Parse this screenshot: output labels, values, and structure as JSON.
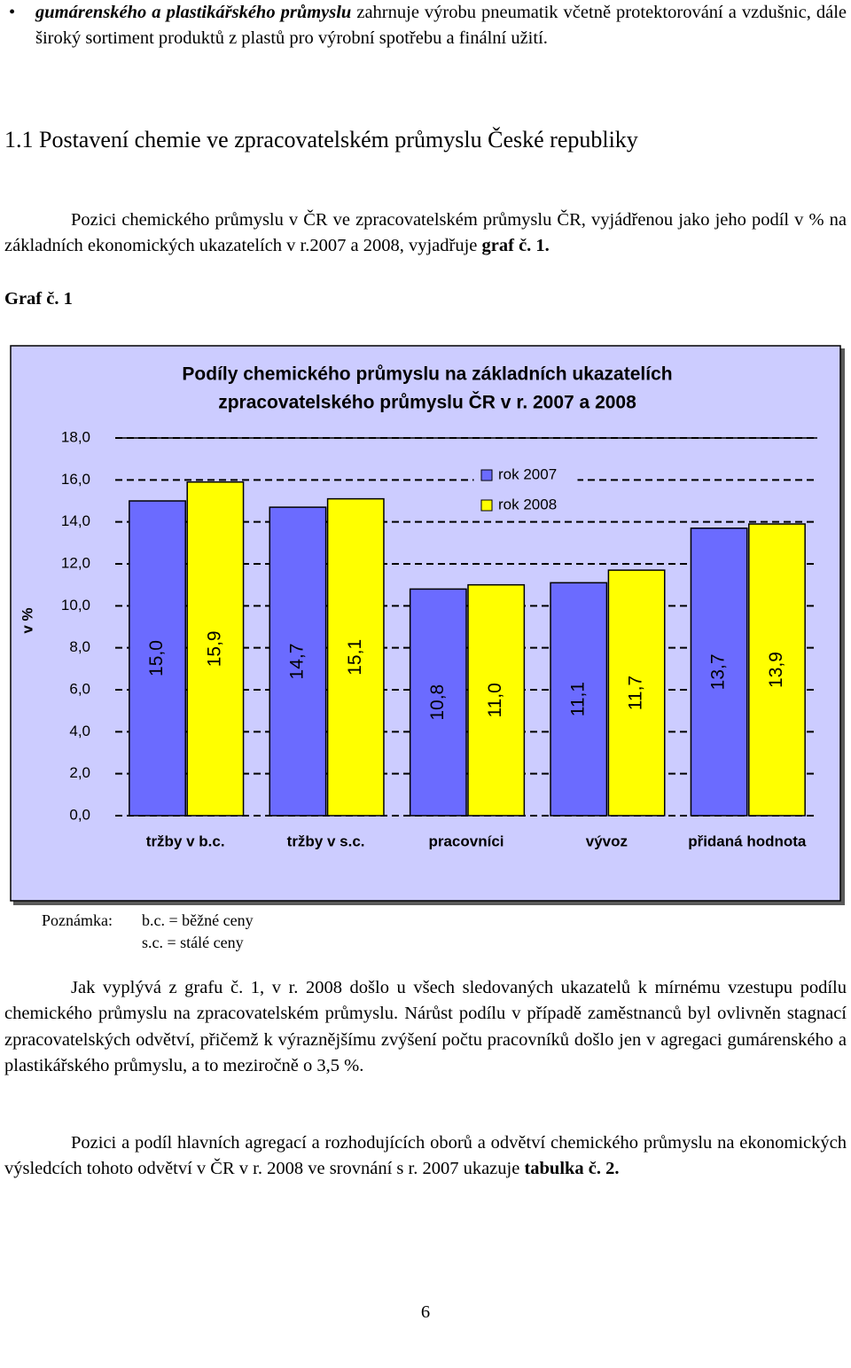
{
  "bullet": {
    "emphasis": "gumárenského a plastikářského průmyslu",
    "text": "zahrnuje výrobu pneumatik včetně protektorování a vzdušnic, dále široký sortiment produktů z plastů pro výrobní spotřebu a finální užití."
  },
  "heading": "1.1 Postavení chemie ve zpracovatelském průmyslu České republiky",
  "paragraph1": {
    "text": "Pozici chemického průmyslu v ČR ve zpracovatelském průmyslu ČR, vyjádřenou jako jeho podíl v % na základních ekonomických ukazatelích v r.2007 a 2008, vyjadřuje",
    "emphasis": "graf č. 1."
  },
  "figure_label": "Graf č. 1",
  "chart_data": {
    "type": "bar",
    "title": [
      "Podíly chemického průmyslu na základních ukazatelích",
      "zpracovatelského průmyslu ČR v r. 2007 a 2008"
    ],
    "y_label": "v %",
    "categories": [
      "tržby v b.c.",
      "tržby v s.c.",
      "pracovníci",
      "vývoz",
      "přidaná hodnota"
    ],
    "series": [
      {
        "name": "rok 2007",
        "color": "#6b6bff",
        "values": [
          15.0,
          14.7,
          10.8,
          11.1,
          13.7
        ],
        "value_labels": [
          "15,0",
          "14,7",
          "10,8",
          "11,1",
          "13,7"
        ]
      },
      {
        "name": "rok 2008",
        "color": "#ffff00",
        "values": [
          15.9,
          15.1,
          11.0,
          11.7,
          13.9
        ],
        "value_labels": [
          "15,9",
          "15,1",
          "11,0",
          "11,7",
          "13,9"
        ]
      }
    ],
    "ylim": [
      0,
      18
    ],
    "yticks": [
      {
        "value": 0,
        "label": "0,0"
      },
      {
        "value": 2,
        "label": "2,0"
      },
      {
        "value": 4,
        "label": "4,0"
      },
      {
        "value": 6,
        "label": "6,0"
      },
      {
        "value": 8,
        "label": "8,0"
      },
      {
        "value": 10,
        "label": "10,0"
      },
      {
        "value": 12,
        "label": "12,0"
      },
      {
        "value": 14,
        "label": "14,0"
      },
      {
        "value": 16,
        "label": "16,0"
      },
      {
        "value": 18,
        "label": "18,0"
      }
    ],
    "grid": true
  },
  "note": {
    "label": "Poznámka:",
    "lines": [
      "b.c. = běžné ceny",
      "s.c. = stálé ceny"
    ]
  },
  "paragraph2": "Jak vyplývá z grafu č. 1, v r. 2008 došlo u všech sledovaných ukazatelů k mírnému vzestupu podílu chemického průmyslu na zpracovatelském průmyslu. Nárůst podílu v případě zaměstnanců byl ovlivněn stagnací zpracovatelských odvětví, přičemž k výraznějšímu zvýšení počtu pracovníků došlo jen v agregaci gumárenského a plastikářského průmyslu, a to meziročně o 3,5 %.",
  "paragraph3": {
    "text": "Pozici a podíl hlavních agregací a rozhodujících oborů a odvětví chemického průmyslu na ekonomických výsledcích tohoto odvětví v ČR v r. 2008 ve srovnání s r. 2007 ukazuje",
    "emphasis": "tabulka č. 2."
  },
  "page_number": "6"
}
